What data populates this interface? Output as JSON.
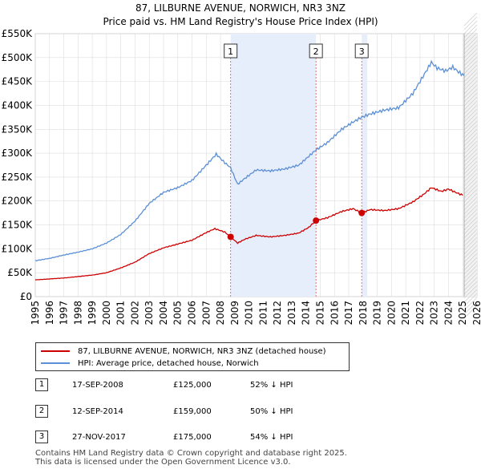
{
  "chart_data": {
    "type": "line",
    "title": "87, LILBURNE AVENUE, NORWICH, NR3 3NZ",
    "subtitle": "Price paid vs. HM Land Registry's House Price Index (HPI)",
    "xlim": [
      1995,
      2026
    ],
    "ylim": [
      0,
      550000
    ],
    "x_ticks": [
      1995,
      1996,
      1997,
      1998,
      1999,
      2000,
      2001,
      2002,
      2003,
      2004,
      2005,
      2006,
      2007,
      2008,
      2009,
      2010,
      2011,
      2012,
      2013,
      2014,
      2015,
      2016,
      2017,
      2018,
      2019,
      2020,
      2021,
      2022,
      2023,
      2024,
      2025,
      2026
    ],
    "y_ticks": [
      {
        "value": 0,
        "label": "£0"
      },
      {
        "value": 50000,
        "label": "£50K"
      },
      {
        "value": 100000,
        "label": "£100K"
      },
      {
        "value": 150000,
        "label": "£150K"
      },
      {
        "value": 200000,
        "label": "£200K"
      },
      {
        "value": 250000,
        "label": "£250K"
      },
      {
        "value": 300000,
        "label": "£300K"
      },
      {
        "value": 350000,
        "label": "£350K"
      },
      {
        "value": 400000,
        "label": "£400K"
      },
      {
        "value": 450000,
        "label": "£450K"
      },
      {
        "value": 500000,
        "label": "£500K"
      },
      {
        "value": 550000,
        "label": "£550K"
      }
    ],
    "shaded_spans": [
      [
        2008.71,
        2014.7
      ],
      [
        2017.91,
        2018.3
      ]
    ],
    "future_hatch_from": 2025.1,
    "colors": {
      "property": "#cc0000",
      "hpi": "#5b8fd6",
      "span": "#e6edfb",
      "grid": "#dddddd",
      "marker_line": "#d9534f"
    },
    "series": [
      {
        "name": "87, LILBURNE AVENUE, NORWICH, NR3 3NZ (detached house)",
        "color": "#cc0000",
        "points": [
          [
            1995,
            35000
          ],
          [
            1996,
            37000
          ],
          [
            1997,
            39000
          ],
          [
            1998,
            42000
          ],
          [
            1999,
            45000
          ],
          [
            2000,
            50000
          ],
          [
            2001,
            60000
          ],
          [
            2002,
            72000
          ],
          [
            2003,
            90000
          ],
          [
            2004,
            102000
          ],
          [
            2005,
            110000
          ],
          [
            2006,
            118000
          ],
          [
            2007,
            134000
          ],
          [
            2007.6,
            142000
          ],
          [
            2008.3,
            135000
          ],
          [
            2008.71,
            125000
          ],
          [
            2009.2,
            112000
          ],
          [
            2009.7,
            120000
          ],
          [
            2010.5,
            128000
          ],
          [
            2011.5,
            125000
          ],
          [
            2012.5,
            128000
          ],
          [
            2013.5,
            133000
          ],
          [
            2014.2,
            145000
          ],
          [
            2014.7,
            159000
          ],
          [
            2015.5,
            165000
          ],
          [
            2016.5,
            178000
          ],
          [
            2017.3,
            184000
          ],
          [
            2017.91,
            175000
          ],
          [
            2018.5,
            182000
          ],
          [
            2019.5,
            180000
          ],
          [
            2020.5,
            184000
          ],
          [
            2021.5,
            198000
          ],
          [
            2022.3,
            215000
          ],
          [
            2022.8,
            228000
          ],
          [
            2023.5,
            220000
          ],
          [
            2024,
            225000
          ],
          [
            2024.5,
            218000
          ],
          [
            2025,
            212000
          ]
        ]
      },
      {
        "name": "HPI: Average price, detached house, Norwich",
        "color": "#5b8fd6",
        "points": [
          [
            1995,
            75000
          ],
          [
            1996,
            80000
          ],
          [
            1997,
            87000
          ],
          [
            1998,
            93000
          ],
          [
            1999,
            100000
          ],
          [
            2000,
            112000
          ],
          [
            2001,
            130000
          ],
          [
            2002,
            158000
          ],
          [
            2003,
            195000
          ],
          [
            2004,
            218000
          ],
          [
            2005,
            228000
          ],
          [
            2006,
            243000
          ],
          [
            2007,
            275000
          ],
          [
            2007.7,
            298000
          ],
          [
            2008.3,
            280000
          ],
          [
            2008.7,
            270000
          ],
          [
            2009.2,
            235000
          ],
          [
            2009.7,
            247000
          ],
          [
            2010.5,
            265000
          ],
          [
            2011.5,
            263000
          ],
          [
            2012.5,
            267000
          ],
          [
            2013.5,
            275000
          ],
          [
            2014.7,
            307000
          ],
          [
            2015.5,
            322000
          ],
          [
            2016.5,
            350000
          ],
          [
            2017.3,
            365000
          ],
          [
            2017.9,
            375000
          ],
          [
            2018.5,
            382000
          ],
          [
            2019.5,
            390000
          ],
          [
            2020.5,
            395000
          ],
          [
            2021.5,
            425000
          ],
          [
            2022.3,
            465000
          ],
          [
            2022.8,
            490000
          ],
          [
            2023.2,
            478000
          ],
          [
            2023.8,
            472000
          ],
          [
            2024.3,
            480000
          ],
          [
            2024.7,
            470000
          ],
          [
            2025.1,
            462000
          ]
        ]
      }
    ],
    "sale_markers": [
      {
        "label": "1",
        "x": 2008.71,
        "price": 125000
      },
      {
        "label": "2",
        "x": 2014.7,
        "price": 159000
      },
      {
        "label": "3",
        "x": 2017.91,
        "price": 175000
      }
    ]
  },
  "legend": {
    "property_label": "87, LILBURNE AVENUE, NORWICH, NR3 3NZ (detached house)",
    "hpi_label": "HPI: Average price, detached house, Norwich"
  },
  "sales": [
    {
      "num": "1",
      "date": "17-SEP-2008",
      "price": "£125,000",
      "delta": "52% ↓ HPI"
    },
    {
      "num": "2",
      "date": "12-SEP-2014",
      "price": "£159,000",
      "delta": "50% ↓ HPI"
    },
    {
      "num": "3",
      "date": "27-NOV-2017",
      "price": "£175,000",
      "delta": "54% ↓ HPI"
    }
  ],
  "footer": {
    "line1": "Contains HM Land Registry data © Crown copyright and database right 2025.",
    "line2": "This data is licensed under the Open Government Licence v3.0."
  }
}
